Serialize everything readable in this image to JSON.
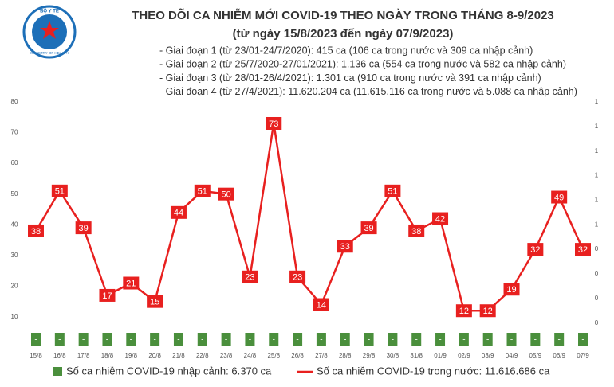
{
  "logo": {
    "top": "BỘ Y TẾ",
    "bottom": "MINISTRY OF HEALTH"
  },
  "chart_data": {
    "type": "line",
    "title": "THEO DÕI CA NHIỄM MỚI COVID-19 THEO NGÀY TRONG THÁNG 8-9/2023",
    "subtitle": "(từ ngày 15/8/2023 đến ngày 07/9/2023)",
    "annotations": [
      "- Giai đoạn 1 (từ 23/01-24/7/2020): 415 ca (106 ca trong nước và 309 ca nhập cảnh)",
      "- Giai đoạn 2 (từ 25/7/2020-27/01/2021): 1.136 ca (554 ca trong nước và 582 ca nhập cảnh)",
      "- Giai đoạn 3 (từ 28/01-26/4/2021): 1.301 ca (910 ca trong nước và 391 ca nhập cảnh)",
      "- Giai đoạn 4 (từ 27/4/2021): 11.620.204 ca (11.615.116 ca trong nước và 5.088 ca nhập cảnh)"
    ],
    "categories": [
      "15/8",
      "16/8",
      "17/8",
      "18/8",
      "19/8",
      "20/8",
      "21/8",
      "22/8",
      "23/8",
      "24/8",
      "25/8",
      "26/8",
      "27/8",
      "28/8",
      "29/8",
      "30/8",
      "31/8",
      "01/9",
      "02/9",
      "03/9",
      "04/9",
      "05/9",
      "06/9",
      "07/9"
    ],
    "series": [
      {
        "name": "Số ca nhiễm COVID-19 nhập cảnh: 6.370 ca",
        "color": "#4a8f3c",
        "type": "bar",
        "axis": "y2",
        "values": [
          0,
          0,
          0,
          0,
          0,
          0,
          0,
          0,
          0,
          0,
          0,
          0,
          0,
          0,
          0,
          0,
          0,
          0,
          0,
          0,
          0,
          0,
          0,
          0
        ],
        "value_labels": [
          "-",
          "-",
          "-",
          "-",
          "-",
          "-",
          "-",
          "-",
          "-",
          "-",
          "-",
          "-",
          "-",
          "-",
          "-",
          "-",
          "-",
          "-",
          "-",
          "-",
          "-",
          "-",
          "-",
          "-"
        ]
      },
      {
        "name": "Số ca nhiễm COVID-19 trong nước: 11.616.686 ca",
        "color": "#e8201f",
        "type": "line",
        "values": [
          38,
          51,
          39,
          17,
          21,
          15,
          44,
          51,
          50,
          23,
          73,
          23,
          14,
          33,
          39,
          51,
          38,
          42,
          12,
          12,
          19,
          32,
          49,
          32
        ]
      }
    ],
    "ylim": [
      0,
      80
    ],
    "yticks": [
      10,
      20,
      30,
      40,
      50,
      60,
      70,
      80
    ],
    "y2lim": [
      0,
      1
    ],
    "y2ticks": [
      {
        "value": 0.1,
        "label": "0"
      },
      {
        "value": 0.2,
        "label": "0"
      },
      {
        "value": 0.3,
        "label": "0"
      },
      {
        "value": 0.4,
        "label": "0"
      },
      {
        "value": 0.5,
        "label": "1"
      },
      {
        "value": 0.6,
        "label": "1"
      },
      {
        "value": 0.7,
        "label": "1"
      },
      {
        "value": 0.8,
        "label": "1"
      },
      {
        "value": 0.9,
        "label": "1"
      },
      {
        "value": 1.0,
        "label": "1"
      }
    ],
    "grid": false,
    "legend": "bottom"
  }
}
